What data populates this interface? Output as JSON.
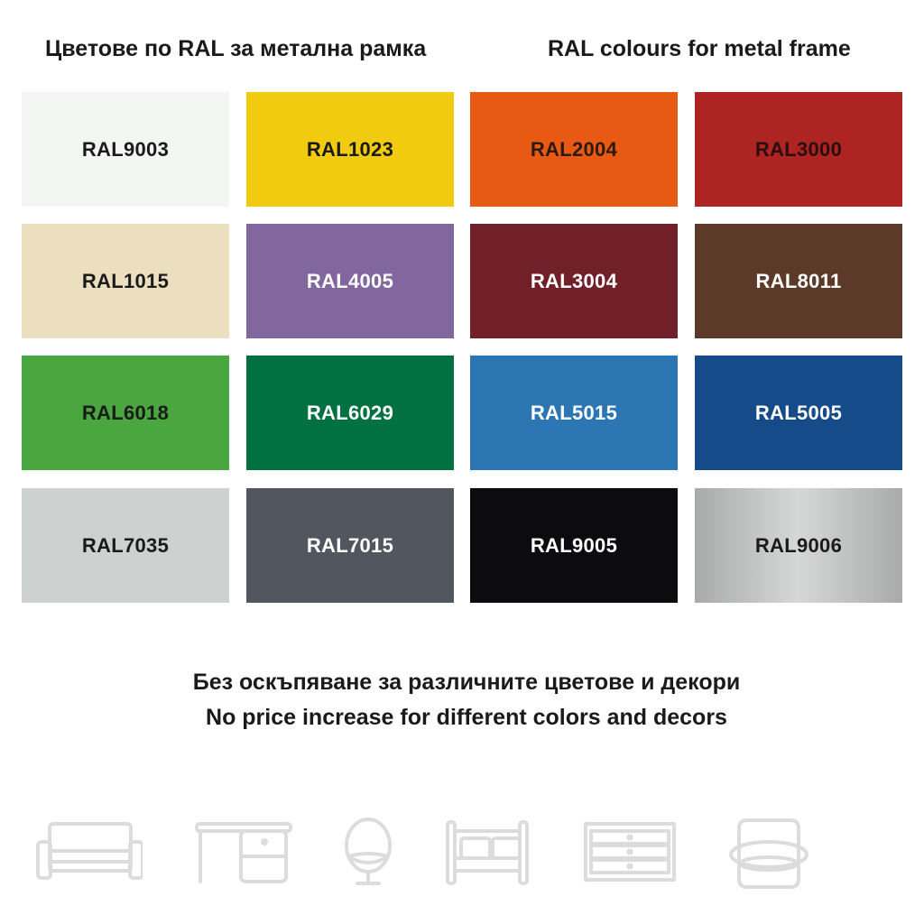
{
  "header": {
    "title_bg": "Цветове по RAL за метална рамка",
    "title_en": "RAL colours for metal frame"
  },
  "swatches": [
    {
      "label": "RAL9003",
      "color": "#f4f6f4",
      "text_color": "#1a1a1a"
    },
    {
      "label": "RAL1023",
      "color": "#f0cb0f",
      "text_color": "#1a1a1a"
    },
    {
      "label": "RAL2004",
      "color": "#e85a13",
      "text_color": "#2a1a10"
    },
    {
      "label": "RAL3000",
      "color": "#ad2422",
      "text_color": "#2a0e0e"
    },
    {
      "label": "RAL1015",
      "color": "#ebdfc0",
      "text_color": "#1a1a1a"
    },
    {
      "label": "RAL4005",
      "color": "#81679d",
      "text_color": "#ffffff"
    },
    {
      "label": "RAL3004",
      "color": "#711f29",
      "text_color": "#ffffff"
    },
    {
      "label": "RAL8011",
      "color": "#5b3a2a",
      "text_color": "#ffffff"
    },
    {
      "label": "RAL6018",
      "color": "#4aa63f",
      "text_color": "#1a1a1a"
    },
    {
      "label": "RAL6029",
      "color": "#017141",
      "text_color": "#ffffff"
    },
    {
      "label": "RAL5015",
      "color": "#2c76b3",
      "text_color": "#ffffff"
    },
    {
      "label": "RAL5005",
      "color": "#164b8a",
      "text_color": "#ffffff"
    },
    {
      "label": "RAL7035",
      "color": "#cdd1cf",
      "text_color": "#1a1a1a"
    },
    {
      "label": "RAL7015",
      "color": "#52565e",
      "text_color": "#ffffff"
    },
    {
      "label": "RAL9005",
      "color": "#0c0c0e",
      "text_color": "#ffffff"
    },
    {
      "label": "RAL9006",
      "color": "#bdbebe",
      "text_color": "#1a1a1a"
    }
  ],
  "footer": {
    "note_bg": "Без оскъпяване за различните цветове и декори",
    "note_en": "No price increase for different colors and decors"
  },
  "icons": [
    "sofa-icon",
    "desk-icon",
    "egg-chair-icon",
    "bed-icon",
    "dresser-icon",
    "armchair-icon"
  ]
}
